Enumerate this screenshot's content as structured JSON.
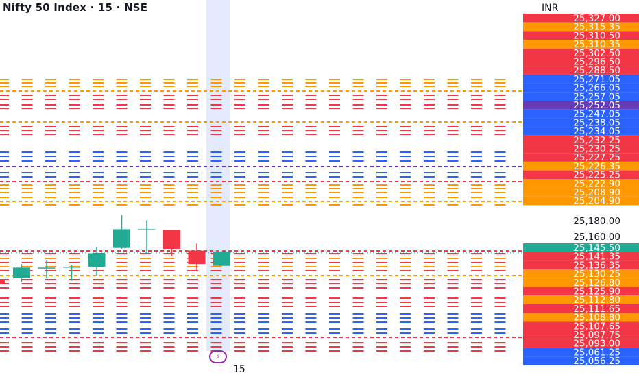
{
  "header": {
    "symbol": "Nifty 50 Index",
    "separator": "·",
    "interval": "15",
    "exchange": "NSE"
  },
  "price_axis": {
    "currency": "INR",
    "plain_ticks": [
      "25,180.00",
      "25,160.00"
    ],
    "labels": [
      {
        "text": "25,327.00",
        "color": "#f23645"
      },
      {
        "text": "25,315.35",
        "color": "#ff9800"
      },
      {
        "text": "25,310.50",
        "color": "#f23645"
      },
      {
        "text": "25,310.35",
        "color": "#ff9800"
      },
      {
        "text": "25,302.50",
        "color": "#f23645"
      },
      {
        "text": "25,296.50",
        "color": "#f23645"
      },
      {
        "text": "25,288.50",
        "color": "#f23645"
      },
      {
        "text": "25,271.05",
        "color": "#2962ff"
      },
      {
        "text": "25,266.05",
        "color": "#2962ff"
      },
      {
        "text": "25,257.05",
        "color": "#2962ff"
      },
      {
        "text": "25,252.05",
        "color": "#673ab7"
      },
      {
        "text": "25,247.05",
        "color": "#2962ff"
      },
      {
        "text": "25,238.05",
        "color": "#2962ff"
      },
      {
        "text": "25,234.05",
        "color": "#2962ff"
      },
      {
        "text": "25,232.25",
        "color": "#f23645"
      },
      {
        "text": "25,230.25",
        "color": "#f23645"
      },
      {
        "text": "25,227.25",
        "color": "#f23645"
      },
      {
        "text": "25,226.35",
        "color": "#ff9800"
      },
      {
        "text": "25,225.25",
        "color": "#f23645"
      },
      {
        "text": "25,222.90",
        "color": "#ff9800"
      },
      {
        "text": "25,208.90",
        "color": "#ff9800"
      },
      {
        "text": "25,204.90",
        "color": "#ff9800"
      },
      {
        "text": "25,145.50",
        "color": "#22ab94"
      },
      {
        "text": "25,141.35",
        "color": "#f23645"
      },
      {
        "text": "25,136.35",
        "color": "#f23645"
      },
      {
        "text": "25,130.25",
        "color": "#ff9800"
      },
      {
        "text": "25,126.80",
        "color": "#ff9800"
      },
      {
        "text": "25,125.90",
        "color": "#f23645"
      },
      {
        "text": "25,112.80",
        "color": "#ff9800"
      },
      {
        "text": "25,111.65",
        "color": "#f23645"
      },
      {
        "text": "25,108.80",
        "color": "#ff9800"
      },
      {
        "text": "25,107.65",
        "color": "#f23645"
      },
      {
        "text": "25,097.75",
        "color": "#f23645"
      },
      {
        "text": "25,093.00",
        "color": "#f23645"
      },
      {
        "text": "25,061.25",
        "color": "#2962ff"
      },
      {
        "text": "25,056.25",
        "color": "#2962ff"
      }
    ]
  },
  "time_axis": {
    "highlighted_label": "15"
  },
  "colors": {
    "up": "#22ab94",
    "down": "#f23645",
    "orange": "#ff9800",
    "blue": "#2962ff",
    "purple": "#673ab7",
    "highlight": "#e3eafc"
  },
  "marker": {
    "icon": "flash-icon",
    "glyph": "⚡"
  },
  "candles": [
    {
      "o": 25115,
      "h": 25118,
      "l": 25106,
      "c": 25110
    },
    {
      "o": 25117,
      "h": 25133,
      "l": 25113,
      "c": 25129
    },
    {
      "o": 25129,
      "h": 25137,
      "l": 25117,
      "c": 25129
    },
    {
      "o": 25129,
      "h": 25132,
      "l": 25114,
      "c": 25130
    },
    {
      "o": 25130,
      "h": 25152,
      "l": 25120,
      "c": 25145
    },
    {
      "o": 25151,
      "h": 25188,
      "l": 25150,
      "c": 25172
    },
    {
      "o": 25172,
      "h": 25182,
      "l": 25144,
      "c": 25172
    },
    {
      "o": 25171,
      "h": 25171,
      "l": 25142,
      "c": 25150
    },
    {
      "o": 25148,
      "h": 25156,
      "l": 25125,
      "c": 25133
    },
    {
      "o": 25131,
      "h": 25147,
      "l": 25131,
      "c": 25147
    }
  ]
}
